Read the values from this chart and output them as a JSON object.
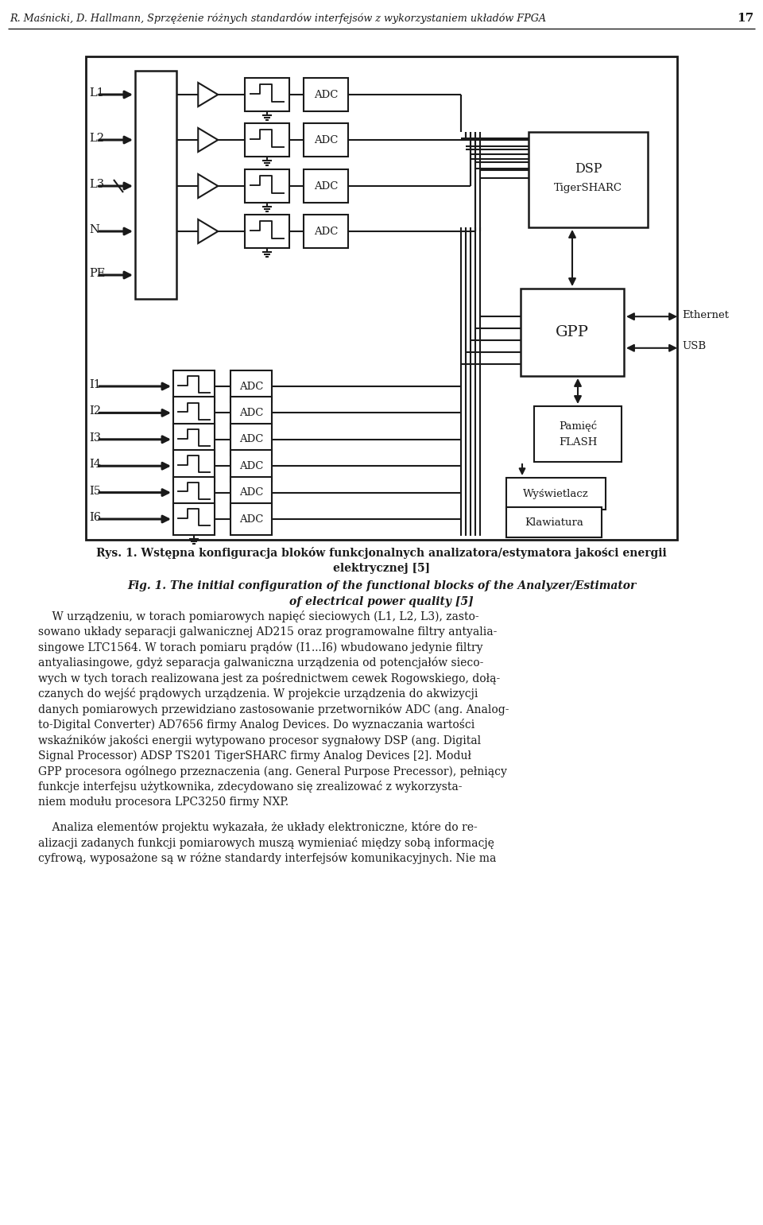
{
  "title_header": "R. Maśnicki, D. Hallmann, Sprzężenie różnych standardów interfejsów z wykorzystaniem układów FPGA",
  "page_number": "17",
  "bg_color": "#ffffff",
  "line_color": "#1a1a1a",
  "text_color": "#1a1a1a",
  "voltage_inputs": [
    "L1",
    "L2",
    "L3",
    "N",
    "PE"
  ],
  "current_inputs": [
    "I1",
    "I2",
    "I3",
    "I4",
    "I5",
    "I6"
  ],
  "caption_pl_1": "Rys. 1. Wstępna konfiguracja bloków funkcjonalnych analizatora/estymatora jakości energii",
  "caption_pl_2": "elektrycznej [5]",
  "caption_en_1": "Fig. 1. The initial configuration of the functional blocks of the Analyzer/Estimator",
  "caption_en_2": "of electrical power quality [5]",
  "body_text": [
    "    W urządzeniu, w torach pomiarowych napięć sieciowych (L1, L2, L3), zasto-",
    "sowano układy separacji galwanicznej AD215 oraz programowalne filtry antyalia-",
    "singowe LTC1564. W torach pomiaru prądów (I1...I6) wbudowano jedynie filtry",
    "antyaliasingowe, gdyż separacja galwaniczna urządzenia od potencjałów sieco-",
    "wych w tych torach realizowana jest za pośrednictwem cewek Rogowskiego, dołą-",
    "czanych do wejść prądowych urządzenia. W projekcie urządzenia do akwizycji",
    "danych pomiarowych przewidziano zastosowanie przetworników ADC (ang. Analog-",
    "to-Digital Converter) AD7656 firmy Analog Devices. Do wyznaczania wartości",
    "wskaźników jakości energii wytypowano procesor sygnałowy DSP (ang. Digital",
    "Signal Processor) ADSP TS201 TigerSHARC firmy Analog Devices [2]. Moduł",
    "GPP procesora ogólnego przeznaczenia (ang. General Purpose Precessor), pełniący",
    "funkcje interfejsu użytkownika, zdecydowano się zrealizować z wykorzysta-",
    "niem modułu procesora LPC3250 firmy NXP."
  ],
  "body_text2": [
    "    Analiza elementów projektu wykazała, że układy elektroniczne, które do re-",
    "alizacji zadanych funkcji pomiarowych muszą wymieniać między sobą informację",
    "cyfrową, wyposażone są w różne standardy interfejsów komunikacyjnych. Nie ma"
  ]
}
